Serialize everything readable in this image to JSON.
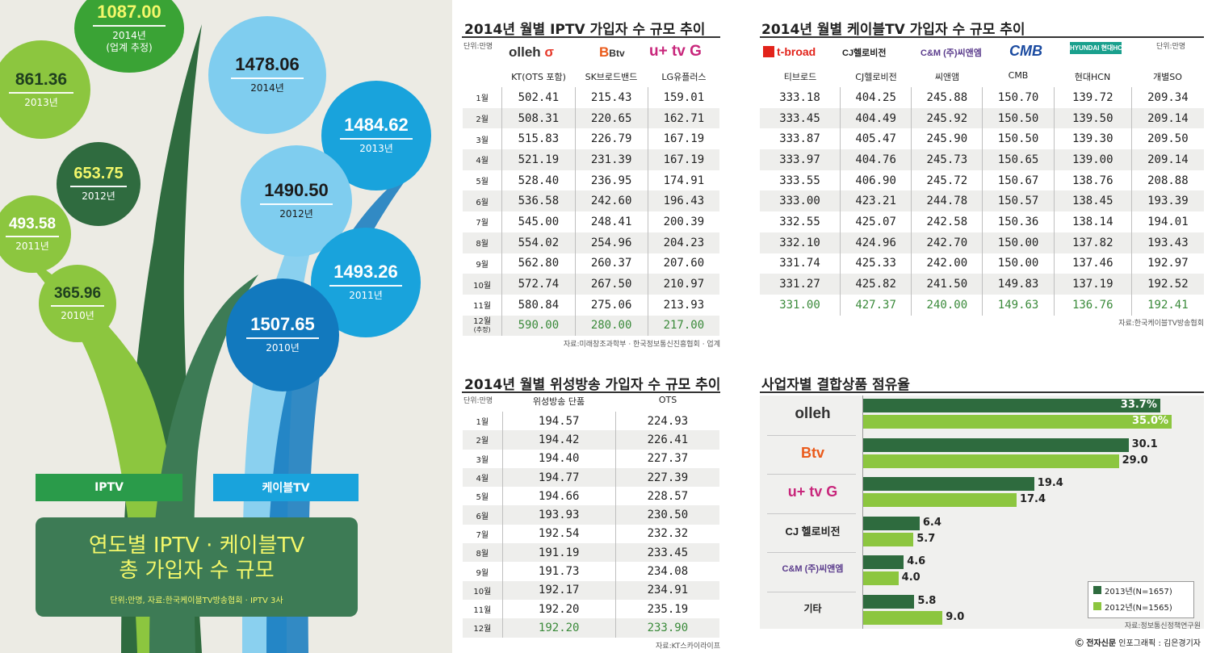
{
  "left": {
    "iptv": [
      {
        "value": "1087.00",
        "year": "2014년",
        "note": "(업계 추정)"
      },
      {
        "value": "861.36",
        "year": "2013년"
      },
      {
        "value": "653.75",
        "year": "2012년"
      },
      {
        "value": "493.58",
        "year": "2011년"
      },
      {
        "value": "365.96",
        "year": "2010년"
      }
    ],
    "cable": [
      {
        "value": "1478.06",
        "year": "2014년"
      },
      {
        "value": "1484.62",
        "year": "2013년"
      },
      {
        "value": "1490.50",
        "year": "2012년"
      },
      {
        "value": "1493.26",
        "year": "2011년"
      },
      {
        "value": "1507.65",
        "year": "2010년"
      }
    ],
    "iptv_label": "IPTV",
    "cable_label": "케이블TV",
    "title_line1": "연도별 IPTV · 케이블TV",
    "title_line2": "총 가입자 수 규모",
    "note": "단위:만명, 자료:한국케이블TV방송협회 · IPTV 3사",
    "colors": {
      "iptv_dark": "#2f6b3f",
      "iptv_light": "#8cc63f",
      "cable_dark": "#1279be",
      "cable_light": "#7fcdef",
      "bg": "#ecebe4"
    }
  },
  "iptv": {
    "title": "2014년 월별 IPTV 가입자 수 규모 추이",
    "unit": "단위:만명",
    "logos": [
      "olleh",
      "Btv",
      "u+ tv G"
    ],
    "columns": [
      "KT(OTS 포함)",
      "SK브로드밴드",
      "LG유플러스"
    ],
    "months": [
      "1월",
      "2월",
      "3월",
      "4월",
      "5월",
      "6월",
      "7월",
      "8월",
      "9월",
      "10월",
      "11월",
      "12월"
    ],
    "last_month_note": "(추정)",
    "rows": [
      [
        "502.41",
        "215.43",
        "159.01"
      ],
      [
        "508.31",
        "220.65",
        "162.71"
      ],
      [
        "515.83",
        "226.79",
        "167.19"
      ],
      [
        "521.19",
        "231.39",
        "167.19"
      ],
      [
        "528.40",
        "236.95",
        "174.91"
      ],
      [
        "536.58",
        "242.60",
        "196.43"
      ],
      [
        "545.00",
        "248.41",
        "200.39"
      ],
      [
        "554.02",
        "254.96",
        "204.23"
      ],
      [
        "562.80",
        "260.37",
        "207.60"
      ],
      [
        "572.74",
        "267.50",
        "210.97"
      ],
      [
        "580.84",
        "275.06",
        "213.93"
      ],
      [
        "590.00",
        "280.00",
        "217.00"
      ]
    ],
    "source": "자료:미래창조과학부 · 한국정보통신진흥협회 · 업계"
  },
  "cable": {
    "title": "2014년 월별 케이블TV 가입자 수 규모 추이",
    "unit": "단위:만명",
    "logos": [
      "t-broad",
      "CJ헬로비전",
      "C&M (주)씨앤엠",
      "CMB",
      "HYUNDAI 현대HCN"
    ],
    "columns": [
      "티브로드",
      "CJ헬로비전",
      "씨앤앰",
      "CMB",
      "현대HCN",
      "개별SO"
    ],
    "rows": [
      [
        "333.18",
        "404.25",
        "245.88",
        "150.70",
        "139.72",
        "209.34"
      ],
      [
        "333.45",
        "404.49",
        "245.92",
        "150.50",
        "139.50",
        "209.14"
      ],
      [
        "333.87",
        "405.47",
        "245.90",
        "150.50",
        "139.30",
        "209.50"
      ],
      [
        "333.97",
        "404.76",
        "245.73",
        "150.65",
        "139.00",
        "209.14"
      ],
      [
        "333.55",
        "406.90",
        "245.72",
        "150.67",
        "138.76",
        "208.88"
      ],
      [
        "333.00",
        "423.21",
        "244.78",
        "150.57",
        "138.45",
        "193.39"
      ],
      [
        "332.55",
        "425.07",
        "242.58",
        "150.36",
        "138.14",
        "194.01"
      ],
      [
        "332.10",
        "424.96",
        "242.70",
        "150.00",
        "137.82",
        "193.43"
      ],
      [
        "331.74",
        "425.33",
        "242.00",
        "150.00",
        "137.46",
        "192.97"
      ],
      [
        "331.27",
        "425.82",
        "241.50",
        "149.83",
        "137.19",
        "192.52"
      ],
      [
        "331.00",
        "427.37",
        "240.00",
        "149.63",
        "136.76",
        "192.41"
      ]
    ],
    "source": "자료:한국케이블TV방송협회"
  },
  "satellite": {
    "title": "2014년 월별 위성방송 가입자 수 규모 추이",
    "unit": "단위:만명",
    "columns": [
      "위성방송 단품",
      "OTS"
    ],
    "months": [
      "1월",
      "2월",
      "3월",
      "4월",
      "5월",
      "6월",
      "7월",
      "8월",
      "9월",
      "10월",
      "11월",
      "12월"
    ],
    "rows": [
      [
        "194.57",
        "224.93"
      ],
      [
        "194.42",
        "226.41"
      ],
      [
        "194.40",
        "227.37"
      ],
      [
        "194.77",
        "227.39"
      ],
      [
        "194.66",
        "228.57"
      ],
      [
        "193.93",
        "230.50"
      ],
      [
        "192.54",
        "232.32"
      ],
      [
        "191.19",
        "233.45"
      ],
      [
        "191.73",
        "234.08"
      ],
      [
        "192.17",
        "234.91"
      ],
      [
        "192.20",
        "235.19"
      ],
      [
        "192.20",
        "233.90"
      ]
    ],
    "source": "자료:KT스카이라이프"
  },
  "chart_data": {
    "type": "bar",
    "title": "사업자별 결합상품 점유율",
    "categories": [
      "olleh",
      "Btv",
      "u+ tv G",
      "CJ 헬로비전",
      "C&M (주)씨앤엠",
      "기타"
    ],
    "series": [
      {
        "name": "2013년(N=1657)",
        "values": [
          33.7,
          30.1,
          19.4,
          6.4,
          4.6,
          5.8
        ],
        "labels": [
          "33.7%",
          "30.1",
          "19.4",
          "6.4",
          "4.6",
          "5.8"
        ],
        "color": "#2e6b3e"
      },
      {
        "name": "2012년(N=1565)",
        "values": [
          35.0,
          29.0,
          17.4,
          5.7,
          4.0,
          9.0
        ],
        "labels": [
          "35.0%",
          "29.0",
          "17.4",
          "5.7",
          "4.0",
          "9.0"
        ],
        "color": "#8cc63f"
      }
    ],
    "xlim": [
      0,
      36
    ],
    "legend_position": "bottom-right",
    "source": "자료:정보통신정책연구원"
  },
  "credit_brand": "전자신문",
  "credit": "인포그래픽 : 김은경기자"
}
